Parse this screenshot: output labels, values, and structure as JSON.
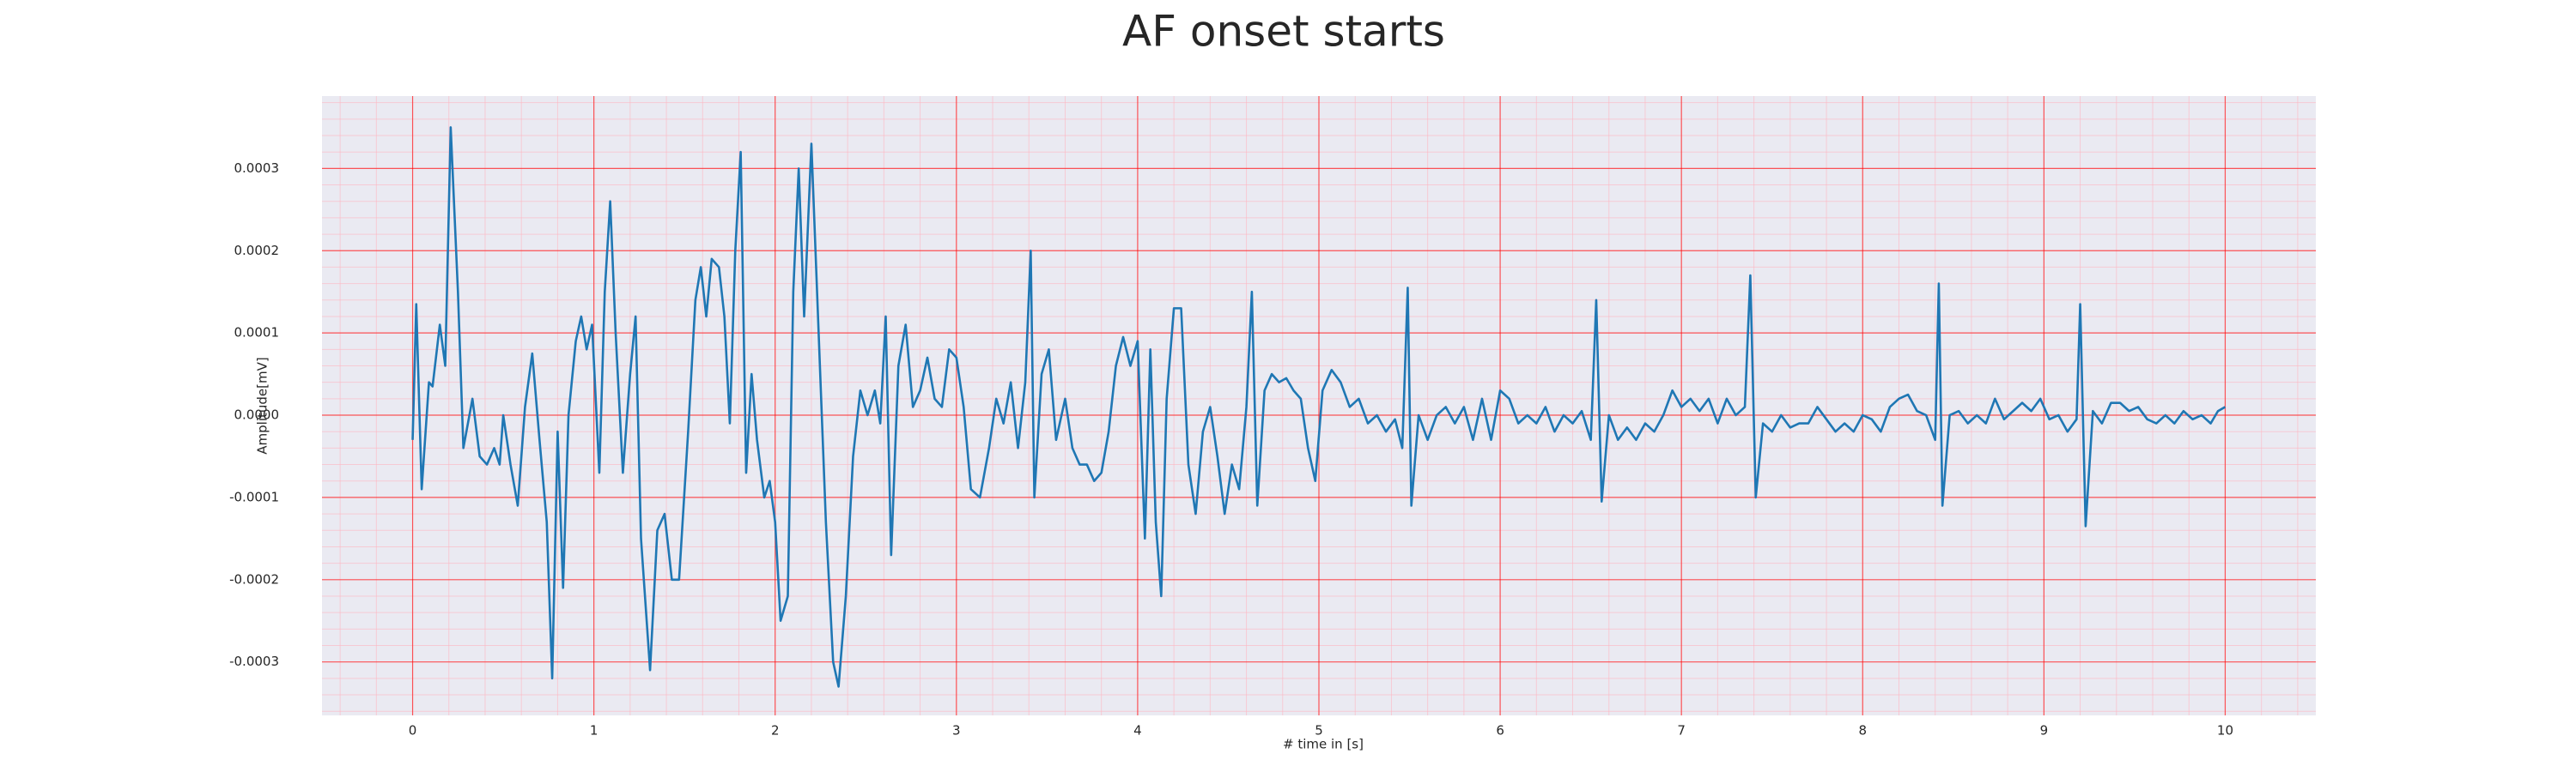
{
  "chart_data": {
    "type": "line",
    "title": "AF onset starts",
    "x_label": "# time in [s]",
    "y_label": "Amplitude[mV]",
    "color": "#1f77b4",
    "grid": true,
    "minor_grid": true,
    "grid_color": "#ff0000",
    "minor_grid_color": "#ffb6c1",
    "background": "#eaeaf2",
    "xlim": [
      -0.5,
      10.5
    ],
    "xticks": [
      0,
      1,
      2,
      3,
      4,
      5,
      6,
      7,
      8,
      9,
      10
    ],
    "ylim": [
      -0.000365,
      0.000388
    ],
    "yticks": [
      -0.0003,
      -0.0002,
      -0.0001,
      {
        "value": 0,
        "label": "0.0000"
      },
      0.0001,
      0.0002,
      0.0003
    ],
    "x": [
      0,
      0.02,
      0.05,
      0.09,
      0.11,
      0.15,
      0.18,
      0.21,
      0.25,
      0.28,
      0.33,
      0.37,
      0.41,
      0.45,
      0.48,
      0.5,
      0.54,
      0.58,
      0.62,
      0.66,
      0.7,
      0.74,
      0.77,
      0.8,
      0.83,
      0.86,
      0.9,
      0.93,
      0.96,
      0.99,
      1.03,
      1.06,
      1.09,
      1.12,
      1.16,
      1.2,
      1.23,
      1.26,
      1.31,
      1.35,
      1.39,
      1.43,
      1.47,
      1.52,
      1.56,
      1.59,
      1.62,
      1.65,
      1.69,
      1.72,
      1.75,
      1.78,
      1.81,
      1.84,
      1.87,
      1.9,
      1.94,
      1.97,
      2.0,
      2.03,
      2.07,
      2.1,
      2.13,
      2.16,
      2.2,
      2.24,
      2.28,
      2.32,
      2.35,
      2.39,
      2.43,
      2.47,
      2.51,
      2.55,
      2.58,
      2.61,
      2.64,
      2.68,
      2.72,
      2.76,
      2.8,
      2.84,
      2.88,
      2.92,
      2.96,
      3.0,
      3.04,
      3.08,
      3.13,
      3.18,
      3.22,
      3.26,
      3.3,
      3.34,
      3.38,
      3.41,
      3.43,
      3.47,
      3.51,
      3.55,
      3.6,
      3.64,
      3.68,
      3.72,
      3.76,
      3.8,
      3.84,
      3.88,
      3.92,
      3.96,
      4.0,
      4.04,
      4.07,
      4.1,
      4.13,
      4.16,
      4.2,
      4.24,
      4.28,
      4.32,
      4.36,
      4.4,
      4.44,
      4.48,
      4.52,
      4.56,
      4.6,
      4.63,
      4.66,
      4.7,
      4.74,
      4.78,
      4.82,
      4.86,
      4.9,
      4.94,
      4.98,
      5.02,
      5.07,
      5.12,
      5.17,
      5.22,
      5.27,
      5.32,
      5.37,
      5.42,
      5.46,
      5.49,
      5.51,
      5.55,
      5.6,
      5.65,
      5.7,
      5.75,
      5.8,
      5.85,
      5.9,
      5.95,
      6.0,
      6.05,
      6.1,
      6.15,
      6.2,
      6.25,
      6.3,
      6.35,
      6.4,
      6.45,
      6.5,
      6.53,
      6.56,
      6.6,
      6.65,
      6.7,
      6.75,
      6.8,
      6.85,
      6.9,
      6.95,
      7.0,
      7.05,
      7.1,
      7.15,
      7.2,
      7.25,
      7.3,
      7.35,
      7.38,
      7.41,
      7.45,
      7.5,
      7.55,
      7.6,
      7.65,
      7.7,
      7.75,
      7.8,
      7.85,
      7.9,
      7.95,
      8.0,
      8.05,
      8.1,
      8.15,
      8.2,
      8.25,
      8.3,
      8.35,
      8.4,
      8.42,
      8.44,
      8.48,
      8.53,
      8.58,
      8.63,
      8.68,
      8.73,
      8.78,
      8.83,
      8.88,
      8.93,
      8.98,
      9.03,
      9.08,
      9.13,
      9.18,
      9.2,
      9.23,
      9.27,
      9.32,
      9.37,
      9.42,
      9.47,
      9.52,
      9.57,
      9.62,
      9.67,
      9.72,
      9.77,
      9.82,
      9.87,
      9.92,
      9.96,
      10.0
    ],
    "values": [
      -3e-05,
      0.000135,
      -9e-05,
      4e-05,
      3.5e-05,
      0.00011,
      6e-05,
      0.00035,
      0.00015,
      -4e-05,
      2e-05,
      -5e-05,
      -6e-05,
      -4e-05,
      -6e-05,
      0,
      -6e-05,
      -0.00011,
      1e-05,
      7.5e-05,
      -3e-05,
      -0.00013,
      -0.00032,
      -2e-05,
      -0.00021,
      0,
      9e-05,
      0.00012,
      8e-05,
      0.00011,
      -7e-05,
      0.00015,
      0.00026,
      0.0001,
      -7e-05,
      5e-05,
      0.00012,
      -0.00015,
      -0.00031,
      -0.00014,
      -0.00012,
      -0.0002,
      -0.0002,
      -2e-05,
      0.00014,
      0.00018,
      0.00012,
      0.00019,
      0.00018,
      0.00012,
      -1e-05,
      0.0002,
      0.00032,
      -7e-05,
      5e-05,
      -3e-05,
      -0.0001,
      -8e-05,
      -0.00013,
      -0.00025,
      -0.00022,
      0.00015,
      0.0003,
      0.00012,
      0.00033,
      0.0001,
      -0.00013,
      -0.0003,
      -0.00033,
      -0.00022,
      -5e-05,
      3e-05,
      0,
      3e-05,
      -1e-05,
      0.00012,
      -0.00017,
      6e-05,
      0.00011,
      1e-05,
      3e-05,
      7e-05,
      2e-05,
      1e-05,
      8e-05,
      7e-05,
      1e-05,
      -9e-05,
      -0.0001,
      -4e-05,
      2e-05,
      -1e-05,
      4e-05,
      -4e-05,
      4e-05,
      0.0002,
      -0.0001,
      5e-05,
      8e-05,
      -3e-05,
      2e-05,
      -4e-05,
      -6e-05,
      -6e-05,
      -8e-05,
      -7e-05,
      -2e-05,
      6e-05,
      9.5e-05,
      6e-05,
      9e-05,
      -0.00015,
      8e-05,
      -0.00013,
      -0.00022,
      2e-05,
      0.00013,
      0.00013,
      -6e-05,
      -0.00012,
      -2e-05,
      1e-05,
      -5e-05,
      -0.00012,
      -6e-05,
      -9e-05,
      1e-05,
      0.00015,
      -0.00011,
      3e-05,
      5e-05,
      4e-05,
      4.5e-05,
      3e-05,
      2e-05,
      -4e-05,
      -8e-05,
      3e-05,
      5.5e-05,
      4e-05,
      1e-05,
      2e-05,
      -1e-05,
      0,
      -2e-05,
      -5e-06,
      -4e-05,
      0.000155,
      -0.00011,
      0,
      -3e-05,
      0,
      1e-05,
      -1e-05,
      1e-05,
      -3e-05,
      2e-05,
      -3e-05,
      3e-05,
      2e-05,
      -1e-05,
      0,
      -1e-05,
      1e-05,
      -2e-05,
      0,
      -1e-05,
      5e-06,
      -3e-05,
      0.00014,
      -0.000105,
      0,
      -3e-05,
      -1.5e-05,
      -3e-05,
      -1e-05,
      -2e-05,
      0,
      3e-05,
      1e-05,
      2e-05,
      5e-06,
      2e-05,
      -1e-05,
      2e-05,
      0,
      1e-05,
      0.00017,
      -0.0001,
      -1e-05,
      -2e-05,
      0,
      -1.5e-05,
      -1e-05,
      -1e-05,
      1e-05,
      -5e-06,
      -2e-05,
      -1e-05,
      -2e-05,
      0,
      -5e-06,
      -2e-05,
      1e-05,
      2e-05,
      2.5e-05,
      5e-06,
      0,
      -3e-05,
      0.00016,
      -0.00011,
      0,
      5e-06,
      -1e-05,
      0,
      -1e-05,
      2e-05,
      -5e-06,
      5e-06,
      1.5e-05,
      5e-06,
      2e-05,
      -5e-06,
      0,
      -2e-05,
      -5e-06,
      0.000135,
      -0.000135,
      5e-06,
      -1e-05,
      1.5e-05,
      1.5e-05,
      5e-06,
      1e-05,
      -5e-06,
      -1e-05,
      0,
      -1e-05,
      5e-06,
      -5e-06,
      0,
      -1e-05,
      5e-06,
      1e-05
    ]
  }
}
